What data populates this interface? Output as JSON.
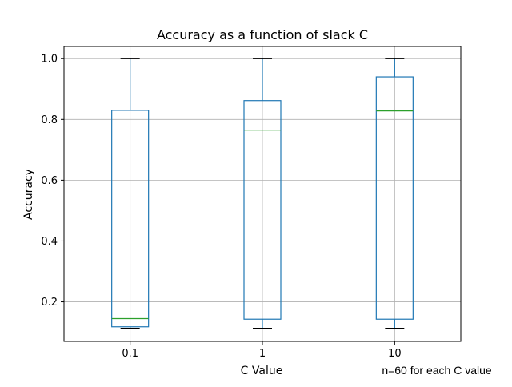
{
  "chart_data": {
    "type": "boxplot",
    "title": "Accuracy as a function of slack C",
    "xlabel": "C Value",
    "ylabel": "Accuracy",
    "annotation": "n=60 for each C value",
    "categories": [
      "0.1",
      "1",
      "10"
    ],
    "boxes": [
      {
        "category": "0.1",
        "whisker_low": 0.113,
        "q1": 0.118,
        "median": 0.145,
        "q3": 0.83,
        "whisker_high": 1.0
      },
      {
        "category": "1",
        "whisker_low": 0.113,
        "q1": 0.143,
        "median": 0.765,
        "q3": 0.862,
        "whisker_high": 1.0
      },
      {
        "category": "10",
        "whisker_low": 0.113,
        "q1": 0.143,
        "median": 0.828,
        "q3": 0.94,
        "whisker_high": 1.0
      }
    ],
    "ylim": [
      0.07,
      1.04
    ],
    "yticks": [
      0.2,
      0.4,
      0.6,
      0.8,
      1.0
    ],
    "ytick_labels": [
      "0.2",
      "0.4",
      "0.6",
      "0.8",
      "1.0"
    ],
    "grid": true,
    "colors": {
      "box": "#1f77b4",
      "median": "#2ca02c",
      "whisker": "#1f77b4",
      "cap": "#000000",
      "grid": "#b0b0b0",
      "axes": "#000000"
    }
  }
}
